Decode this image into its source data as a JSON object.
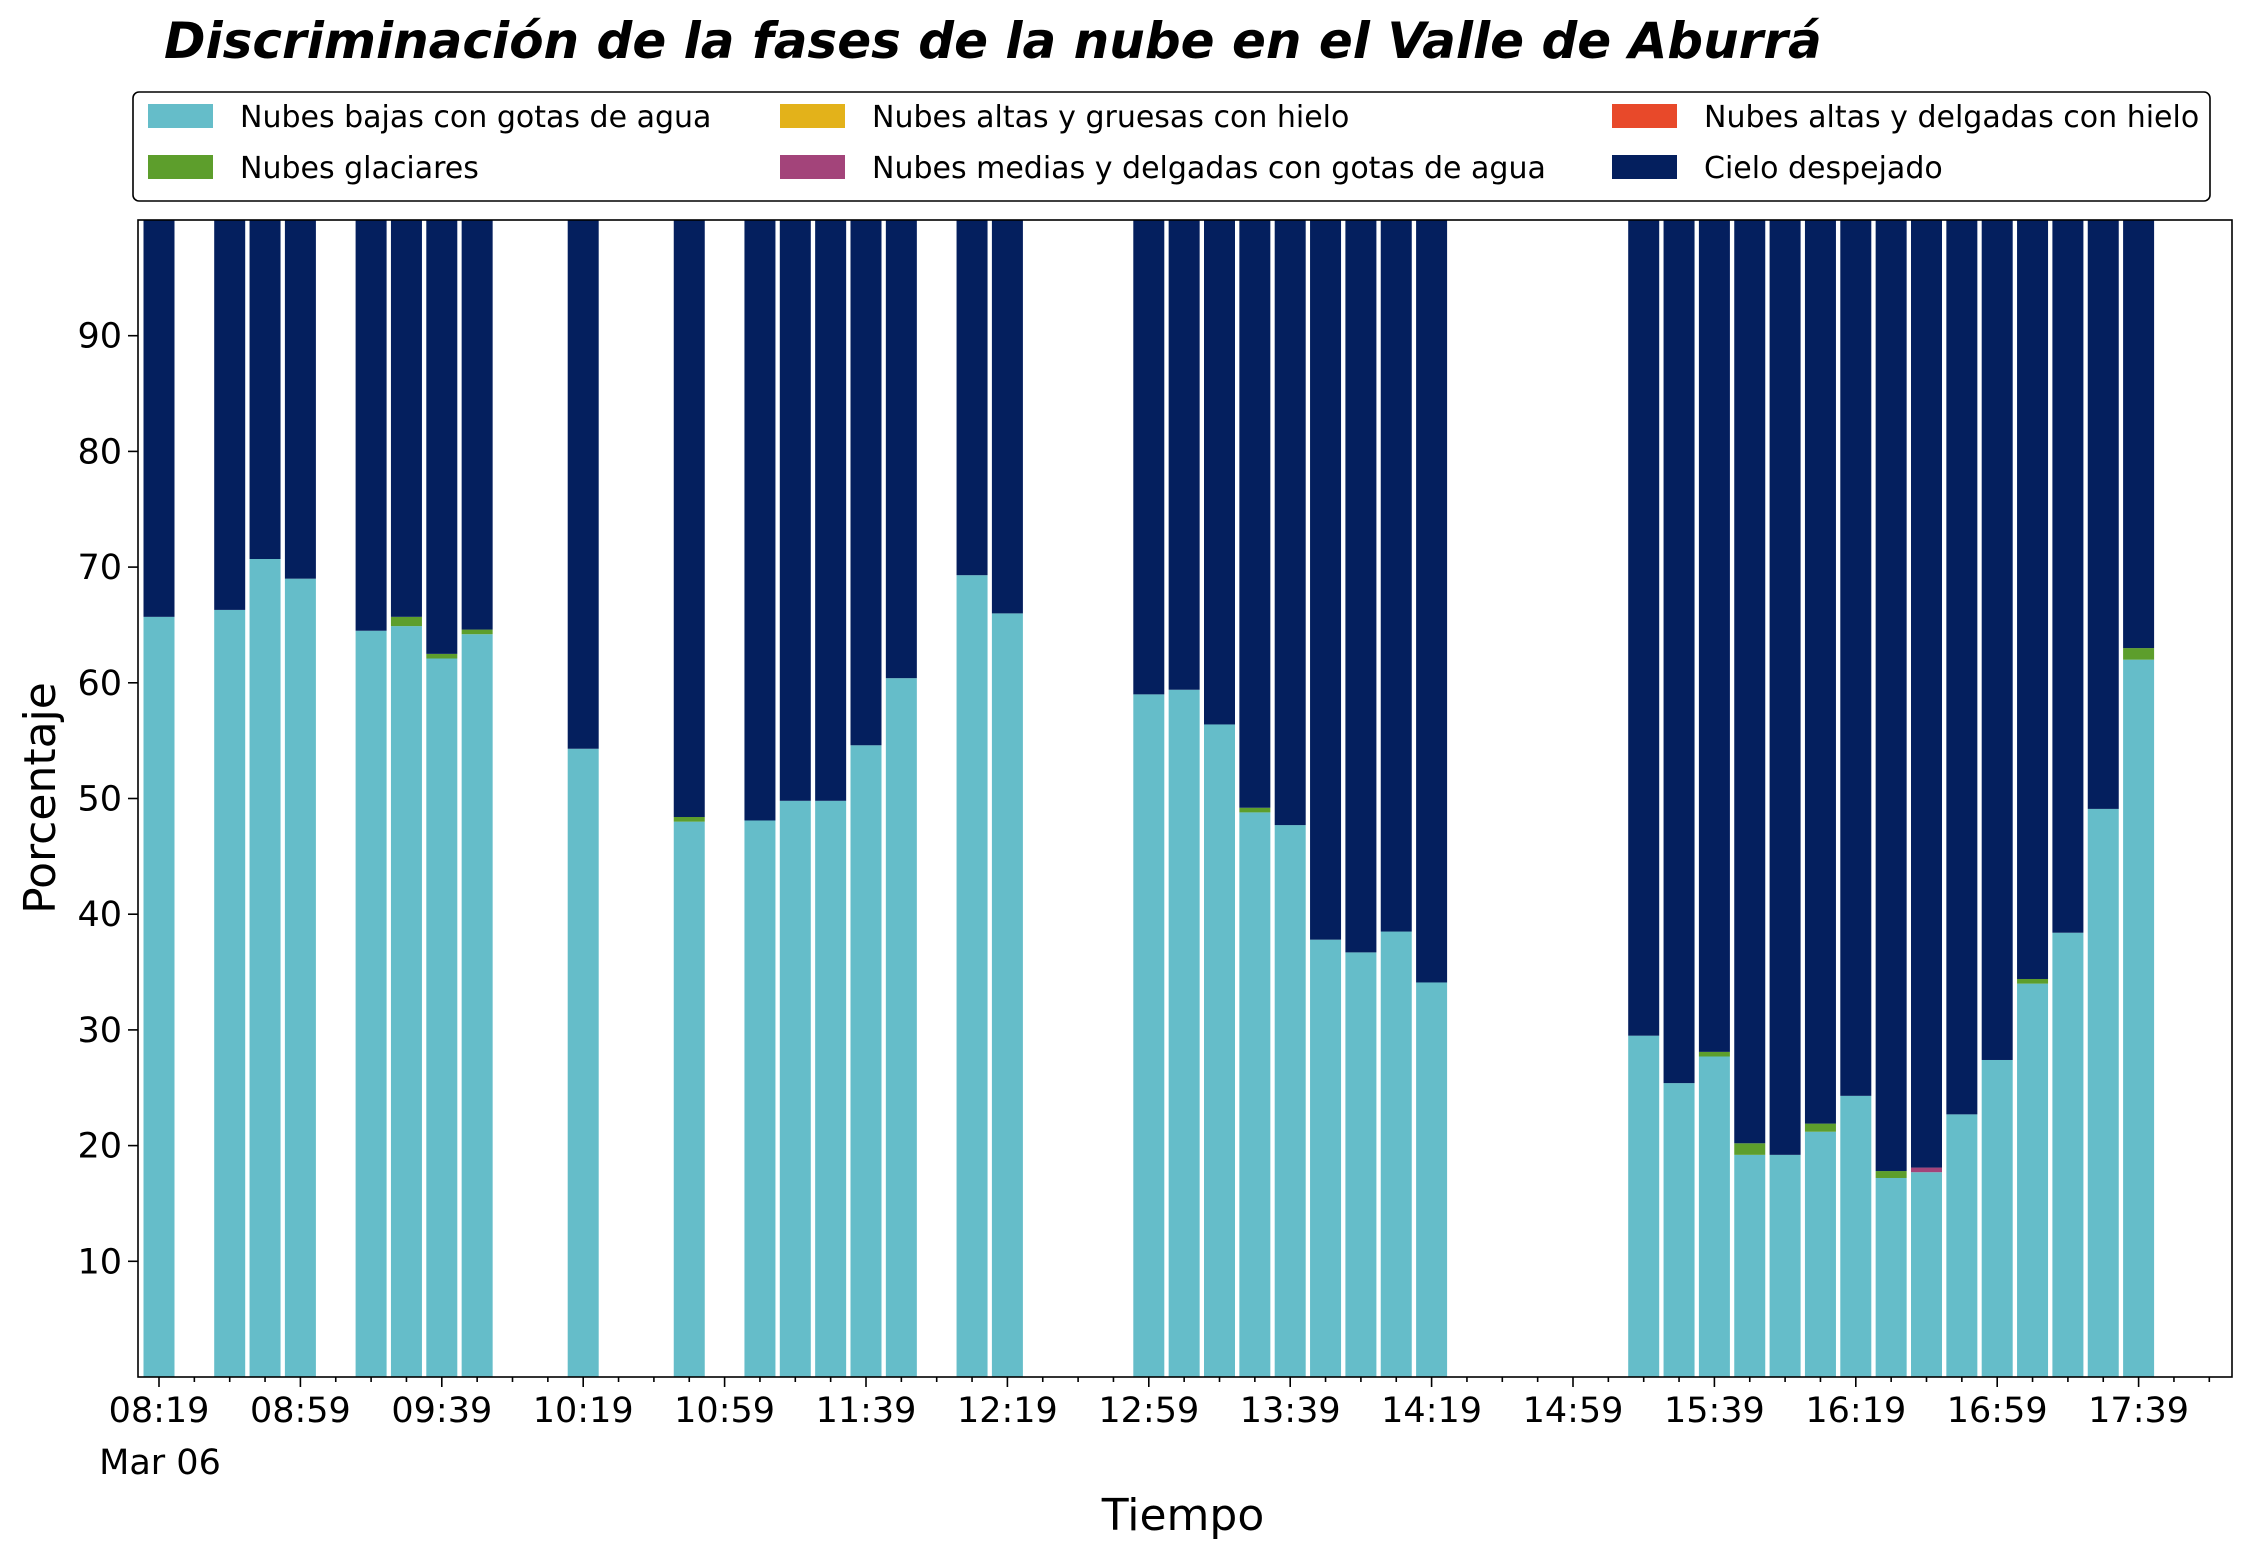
{
  "chart_data": {
    "type": "bar",
    "stacked": true,
    "title": "Discriminación de la fases de la nube en el Valle de Aburrá",
    "xlabel": "Tiempo",
    "ylabel": "Porcentaje",
    "ylim": [
      0,
      100
    ],
    "y_ticks": [
      10,
      20,
      30,
      40,
      50,
      60,
      70,
      80,
      90
    ],
    "x_tick_labels": [
      "08:19",
      "08:59",
      "09:39",
      "10:19",
      "10:59",
      "11:39",
      "12:19",
      "12:59",
      "13:39",
      "14:19",
      "14:59",
      "15:39",
      "16:19",
      "16:59",
      "17:39"
    ],
    "date_label": "Mar 06",
    "x_slot_count": 59,
    "legend_position": "top",
    "categories": [
      "08:19",
      "08:39",
      "08:49",
      "08:59",
      "09:19",
      "09:29",
      "09:39",
      "09:49",
      "10:19",
      "10:49",
      "10:59",
      "11:09",
      "11:19",
      "11:29",
      "11:39",
      "12:19",
      "12:29",
      "12:59",
      "13:09",
      "13:19",
      "13:29",
      "13:39",
      "13:49",
      "13:59",
      "14:09",
      "14:19",
      "15:19",
      "15:29",
      "15:39",
      "15:49",
      "15:59",
      "16:09",
      "16:19",
      "16:29",
      "16:39",
      "16:49",
      "16:59",
      "17:09",
      "17:19",
      "17:29",
      "17:39"
    ],
    "slots": [
      0,
      2,
      3,
      4,
      6,
      7,
      8,
      9,
      12,
      15,
      17,
      18,
      19,
      20,
      21,
      23,
      24,
      28,
      29,
      30,
      31,
      32,
      33,
      34,
      35,
      36,
      42,
      43,
      44,
      45,
      46,
      47,
      48,
      49,
      50,
      51,
      52,
      53,
      54,
      55,
      56
    ],
    "series": [
      {
        "name": "Nubes bajas con gotas de agua",
        "color": "#65bdc9",
        "values": [
          65.7,
          66.3,
          70.7,
          69.0,
          64.5,
          64.9,
          62.1,
          64.2,
          54.3,
          48.0,
          48.1,
          49.8,
          49.8,
          54.6,
          60.4,
          69.3,
          66.0,
          59.0,
          59.4,
          56.4,
          48.8,
          47.7,
          37.8,
          36.7,
          38.5,
          34.1,
          29.5,
          25.4,
          27.7,
          19.2,
          19.2,
          21.2,
          24.3,
          17.2,
          17.7,
          22.7,
          27.4,
          34.0,
          38.4,
          49.1,
          62.0
        ]
      },
      {
        "name": "Nubes glaciares",
        "color": "#5d9e2c",
        "values": [
          0,
          0,
          0,
          0,
          0,
          0.8,
          0.4,
          0.4,
          0,
          0.4,
          0,
          0,
          0,
          0,
          0,
          0,
          0,
          0,
          0,
          0,
          0.4,
          0,
          0,
          0,
          0,
          0,
          0,
          0,
          0.4,
          1.0,
          0,
          0.7,
          0,
          0.6,
          0,
          0,
          0,
          0.4,
          0,
          0,
          1.0
        ]
      },
      {
        "name": "Nubes altas y gruesas con hielo",
        "color": "#e3b21a",
        "values": [
          0,
          0,
          0,
          0,
          0,
          0,
          0,
          0,
          0,
          0,
          0,
          0,
          0,
          0,
          0,
          0,
          0,
          0,
          0,
          0,
          0,
          0,
          0,
          0,
          0,
          0,
          0,
          0,
          0,
          0,
          0,
          0,
          0,
          0,
          0,
          0,
          0,
          0,
          0,
          0,
          0
        ]
      },
      {
        "name": "Nubes medias y delgadas con gotas de agua",
        "color": "#a3447a",
        "values": [
          0,
          0,
          0,
          0,
          0,
          0,
          0,
          0,
          0,
          0,
          0,
          0,
          0,
          0,
          0,
          0,
          0,
          0,
          0,
          0,
          0,
          0,
          0,
          0,
          0,
          0,
          0,
          0,
          0,
          0,
          0,
          0,
          0,
          0,
          0.4,
          0,
          0,
          0,
          0,
          0,
          0
        ]
      },
      {
        "name": "Nubes altas y delgadas con hielo",
        "color": "#e8492a",
        "values": [
          0,
          0,
          0,
          0,
          0,
          0,
          0,
          0,
          0,
          0,
          0,
          0,
          0,
          0,
          0,
          0,
          0,
          0,
          0,
          0,
          0,
          0,
          0,
          0,
          0,
          0,
          0,
          0,
          0,
          0,
          0,
          0,
          0,
          0,
          0,
          0,
          0,
          0,
          0,
          0,
          0
        ]
      },
      {
        "name": "Cielo despejado",
        "color": "#041f5e",
        "values": [
          34.3,
          33.7,
          29.3,
          31.0,
          35.5,
          34.3,
          37.5,
          35.4,
          45.7,
          51.6,
          51.9,
          50.2,
          50.2,
          45.4,
          39.6,
          30.7,
          34.0,
          41.0,
          40.6,
          43.6,
          50.8,
          52.3,
          62.2,
          63.3,
          61.5,
          65.9,
          70.5,
          74.6,
          71.9,
          79.8,
          80.8,
          78.1,
          75.7,
          82.2,
          81.9,
          77.3,
          72.6,
          65.6,
          61.6,
          50.9,
          37.0
        ]
      }
    ]
  }
}
